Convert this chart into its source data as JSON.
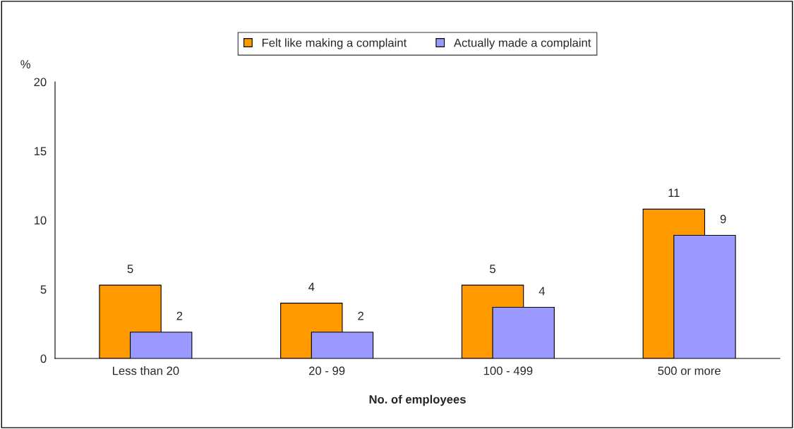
{
  "chart_data": {
    "type": "bar",
    "xlabel": "No. of employees",
    "ylabel": "%",
    "categories": [
      "Less than 20",
      "20 - 99",
      "100 - 499",
      "500 or more"
    ],
    "series": [
      {
        "name": "Felt like making a complaint",
        "color": "#ff9900",
        "values": [
          5.3,
          4.0,
          5.3,
          10.8
        ],
        "value_labels": [
          "5",
          "4",
          "5",
          "11"
        ]
      },
      {
        "name": "Actually made a complaint",
        "color": "#9999ff",
        "values": [
          1.9,
          1.9,
          3.7,
          8.9
        ],
        "value_labels": [
          "2",
          "2",
          "4",
          "9"
        ]
      }
    ],
    "ylim": [
      0,
      20
    ],
    "yticks": [
      0,
      5,
      10,
      15,
      20
    ],
    "grid": false,
    "legend": "top"
  }
}
